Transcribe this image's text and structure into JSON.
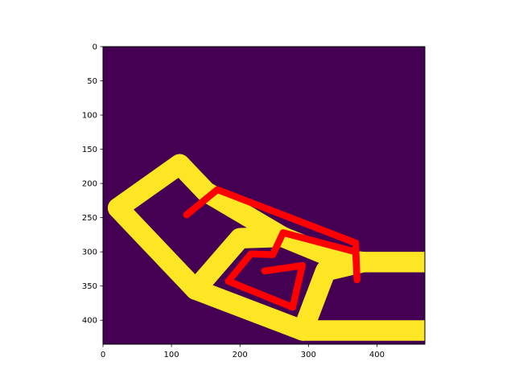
{
  "chart_data": {
    "type": "heatmap",
    "title": "",
    "xlabel": "",
    "ylabel": "",
    "xlim": [
      0,
      470
    ],
    "ylim": [
      435,
      0
    ],
    "y_axis_inverted": true,
    "x_ticks": [
      0,
      100,
      200,
      300,
      400
    ],
    "y_ticks": [
      0,
      50,
      100,
      150,
      200,
      250,
      300,
      350,
      400
    ],
    "grid": false,
    "legend": "none",
    "colors": {
      "background": "#440154",
      "foreground": "#fde725",
      "overlay_line": "#ff0000",
      "axes": "#000000"
    },
    "foreground_mask": {
      "value": 1,
      "color": "#fde725",
      "stroke_width": 30,
      "segments": [
        {
          "name": "outer-left",
          "points": [
            [
              22,
              236
            ],
            [
              112,
              172
            ],
            [
              150,
              212
            ],
            [
              262,
              278
            ]
          ]
        },
        {
          "name": "left-diagonal",
          "points": [
            [
              22,
              236
            ],
            [
              135,
              355
            ]
          ]
        },
        {
          "name": "middle-diagonal",
          "points": [
            [
              135,
              355
            ],
            [
              200,
              280
            ],
            [
              262,
              278
            ]
          ]
        },
        {
          "name": "bottom-edge",
          "points": [
            [
              135,
              355
            ],
            [
              292,
              415
            ],
            [
              512,
              415
            ]
          ]
        },
        {
          "name": "right-connector",
          "points": [
            [
              262,
              278
            ],
            [
              340,
              310
            ],
            [
              380,
              315
            ],
            [
              490,
              315
            ],
            [
              512,
              415
            ]
          ]
        },
        {
          "name": "inner-bottom-left",
          "points": [
            [
              292,
              415
            ],
            [
              325,
              328
            ],
            [
              380,
              315
            ]
          ]
        }
      ]
    },
    "overlay_path": {
      "color": "#ff0000",
      "stroke_width": 10,
      "points": [
        [
          122,
          246
        ],
        [
          167,
          209
        ],
        [
          369,
          287
        ],
        [
          371,
          341
        ],
        [
          369,
          300
        ],
        [
          263,
          272
        ],
        [
          248,
          304
        ],
        [
          216,
          303
        ],
        [
          183,
          343
        ],
        [
          277,
          381
        ],
        [
          291,
          320
        ],
        [
          236,
          328
        ]
      ]
    }
  }
}
